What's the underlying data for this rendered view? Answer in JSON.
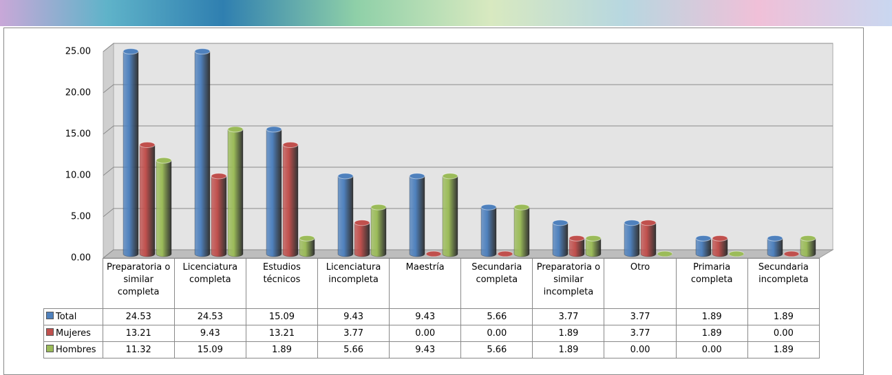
{
  "chart_data": {
    "type": "bar",
    "categories": [
      "Preparatoria o similar completa",
      "Licenciatura completa",
      "Estudios técnicos",
      "Licenciatura incompleta",
      "Maestría",
      "Secundaria completa",
      "Preparatoria o similar incompleta",
      "Otro",
      "Primaria completa",
      "Secundaria incompleta"
    ],
    "series": [
      {
        "name": "Total",
        "color": "#4f81bd",
        "values": [
          24.53,
          24.53,
          15.09,
          9.43,
          9.43,
          5.66,
          3.77,
          3.77,
          1.89,
          1.89
        ],
        "value_labels": [
          "24.53",
          "24.53",
          "15.09",
          "9.43",
          "9.43",
          "5.66",
          "3.77",
          "3.77",
          "1.89",
          "1.89"
        ]
      },
      {
        "name": "Mujeres",
        "color": "#c0504d",
        "values": [
          13.21,
          9.43,
          13.21,
          3.77,
          0,
          0,
          1.89,
          3.77,
          1.89,
          0
        ],
        "value_labels": [
          "13.21",
          "9.43",
          "13.21",
          "3.77",
          "0.00",
          "0.00",
          "1.89",
          "3.77",
          "1.89",
          "0.00"
        ]
      },
      {
        "name": "Hombres",
        "color": "#9bbb59",
        "values": [
          11.32,
          15.09,
          1.89,
          5.66,
          9.43,
          5.66,
          1.89,
          0,
          0,
          1.89
        ],
        "value_labels": [
          "11.32",
          "15.09",
          "1.89",
          "5.66",
          "9.43",
          "5.66",
          "1.89",
          "0.00",
          "0.00",
          "1.89"
        ]
      }
    ],
    "ylim": [
      0,
      25
    ],
    "yticks": [
      {
        "value": 0,
        "label": "0.00"
      },
      {
        "value": 5,
        "label": "5.00"
      },
      {
        "value": 10,
        "label": "10.00"
      },
      {
        "value": 15,
        "label": "15.00"
      },
      {
        "value": 20,
        "label": "20.00"
      },
      {
        "value": 25,
        "label": "25.00"
      }
    ],
    "grid": true
  }
}
